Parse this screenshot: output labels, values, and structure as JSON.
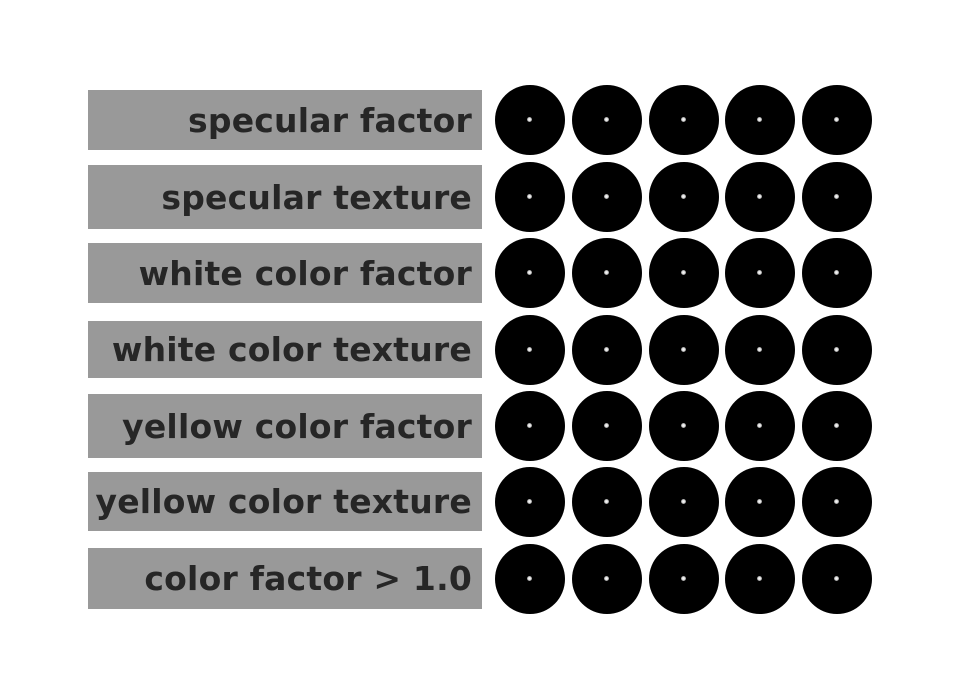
{
  "rows": [
    {
      "label": "specular factor"
    },
    {
      "label": "specular texture"
    },
    {
      "label": "white color factor"
    },
    {
      "label": "white color texture"
    },
    {
      "label": "yellow color factor"
    },
    {
      "label": "yellow color texture"
    },
    {
      "label": "color factor > 1.0"
    }
  ],
  "spheres_per_row": 5,
  "colors": {
    "background": "#ffffff",
    "label_bg": "#999999",
    "label_text": "#262626",
    "sphere": "#000000",
    "highlight": "#ffffff"
  }
}
